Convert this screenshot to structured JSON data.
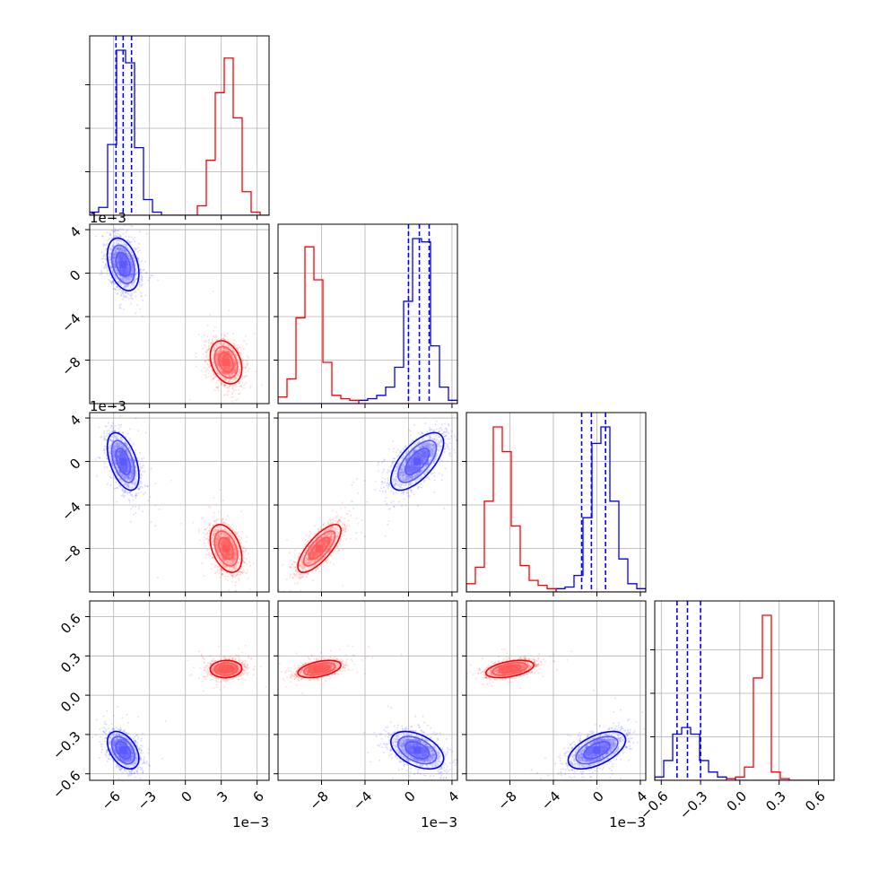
{
  "chart_data": {
    "type": "corner",
    "colors": {
      "blue": "#0000ff",
      "red": "#ff0000",
      "grid": "#b0b0b0"
    },
    "params": [
      {
        "range": [
          -8,
          7
        ],
        "ticks": [
          -6,
          -3,
          0,
          3,
          6
        ],
        "tick_labels": [
          "−6",
          "−3",
          "0",
          "3",
          "6"
        ],
        "scale_label": "1e−3"
      },
      {
        "range": [
          -12,
          4.5
        ],
        "ticks": [
          -8,
          -4,
          0,
          4
        ],
        "tick_labels": [
          "−8",
          "−4",
          "0",
          "4"
        ],
        "scale_label": "1e−3"
      },
      {
        "range": [
          -12,
          4.5
        ],
        "ticks": [
          -8,
          -4,
          0,
          4
        ],
        "tick_labels": [
          "−8",
          "−4",
          "0",
          "4"
        ],
        "scale_label": "1e−3"
      },
      {
        "range": [
          -0.65,
          0.72
        ],
        "ticks": [
          -0.6,
          -0.3,
          0.0,
          0.3,
          0.6
        ],
        "tick_labels": [
          "−0.6",
          "−0.3",
          "0.0",
          "0.3",
          "0.6"
        ],
        "scale_label": ""
      }
    ],
    "populations": [
      {
        "color": "blue",
        "means": [
          -5.2,
          0.8,
          0.0,
          -0.42
        ],
        "sds": [
          0.6,
          1.1,
          1.2,
          0.065
        ],
        "quantiles": [
          [
            -5.8,
            -5.2,
            -4.5
          ],
          [
            0.0,
            1.0,
            1.9
          ],
          [
            -1.4,
            -0.5,
            0.8
          ],
          [
            -0.48,
            -0.4,
            -0.3
          ]
        ],
        "pairs": [
          {
            "i": 1,
            "j": 0,
            "rho": -0.35
          },
          {
            "i": 2,
            "j": 0,
            "rho": -0.5
          },
          {
            "i": 3,
            "j": 0,
            "rho": -0.45
          },
          {
            "i": 2,
            "j": 1,
            "rho": 0.65
          },
          {
            "i": 3,
            "j": 1,
            "rho": -0.45
          },
          {
            "i": 3,
            "j": 2,
            "rho": 0.55
          }
        ]
      },
      {
        "color": "red",
        "means": [
          3.4,
          -8.2,
          -8.0,
          0.2
        ],
        "sds": [
          0.6,
          0.9,
          1.0,
          0.03
        ],
        "quantiles": [],
        "pairs": [
          {
            "i": 1,
            "j": 0,
            "rho": -0.3
          },
          {
            "i": 2,
            "j": 0,
            "rho": -0.4
          },
          {
            "i": 3,
            "j": 0,
            "rho": 0.05
          },
          {
            "i": 2,
            "j": 1,
            "rho": 0.75
          },
          {
            "i": 3,
            "j": 1,
            "rho": 0.45
          },
          {
            "i": 3,
            "j": 2,
            "rho": 0.45
          }
        ]
      }
    ],
    "histograms": [
      {
        "param": 0,
        "edges": [
          -8,
          -7.25,
          -6.5,
          -5.75,
          -5.0,
          -4.25,
          -3.5,
          -2.75,
          -2.0,
          -1.25,
          -0.5,
          0.25,
          1.0,
          1.75,
          2.5,
          3.25,
          4.0,
          4.75,
          5.5,
          6.25,
          7.0
        ],
        "series": [
          {
            "color": "blue",
            "counts": [
              0.02,
              0.05,
              0.45,
              1.05,
              0.97,
              0.43,
              0.1,
              0.02,
              0.0,
              0.0,
              0.0,
              0.0,
              0.0,
              0.0,
              0.0,
              0.0,
              0.0,
              0.0,
              0.0,
              0.0
            ]
          },
          {
            "color": "red",
            "counts": [
              0.0,
              0.0,
              0.0,
              0.0,
              0.0,
              0.0,
              0.0,
              0.0,
              0.0,
              0.0,
              0.0,
              0.0,
              0.06,
              0.35,
              0.78,
              1.0,
              0.62,
              0.15,
              0.02,
              0.0
            ]
          }
        ]
      },
      {
        "param": 1,
        "edges": [
          -12,
          -11.175,
          -10.35,
          -9.525,
          -8.7,
          -7.875,
          -7.05,
          -6.225,
          -5.4,
          -4.575,
          -3.75,
          -2.925,
          -2.1,
          -1.275,
          -0.45,
          0.375,
          1.2,
          2.025,
          2.85,
          3.675,
          4.5
        ],
        "series": [
          {
            "color": "blue",
            "counts": [
              0.0,
              0.0,
              0.0,
              0.0,
              0.0,
              0.0,
              0.0,
              0.0,
              0.0,
              0.02,
              0.03,
              0.05,
              0.1,
              0.22,
              0.62,
              1.0,
              0.98,
              0.35,
              0.1,
              0.02
            ]
          },
          {
            "color": "red",
            "counts": [
              0.04,
              0.15,
              0.52,
              0.95,
              0.75,
              0.25,
              0.05,
              0.03,
              0.02,
              0.0,
              0.0,
              0.0,
              0.0,
              0.0,
              0.0,
              0.0,
              0.0,
              0.0,
              0.0,
              0.0
            ]
          }
        ]
      },
      {
        "param": 2,
        "edges": [
          -12,
          -11.175,
          -10.35,
          -9.525,
          -8.7,
          -7.875,
          -7.05,
          -6.225,
          -5.4,
          -4.575,
          -3.75,
          -2.925,
          -2.1,
          -1.275,
          -0.45,
          0.375,
          1.2,
          2.025,
          2.85,
          3.675,
          4.5
        ],
        "series": [
          {
            "color": "blue",
            "counts": [
              0.0,
              0.0,
              0.0,
              0.0,
              0.0,
              0.0,
              0.0,
              0.0,
              0.0,
              0.0,
              0.02,
              0.03,
              0.1,
              0.45,
              0.9,
              1.0,
              0.55,
              0.2,
              0.05,
              0.02
            ]
          },
          {
            "color": "red",
            "counts": [
              0.05,
              0.15,
              0.55,
              1.0,
              0.85,
              0.4,
              0.16,
              0.07,
              0.04,
              0.02,
              0.0,
              0.0,
              0.0,
              0.0,
              0.0,
              0.0,
              0.0,
              0.0,
              0.0,
              0.0
            ]
          }
        ]
      },
      {
        "param": 3,
        "edges": [
          -0.65,
          -0.5815,
          -0.513,
          -0.4445,
          -0.376,
          -0.3075,
          -0.239,
          -0.1705,
          -0.102,
          -0.0335,
          0.035,
          0.1035,
          0.172,
          0.2405,
          0.309,
          0.3775,
          0.446,
          0.5145,
          0.583,
          0.6515,
          0.72
        ],
        "series": [
          {
            "color": "blue",
            "counts": [
              0.02,
              0.12,
              0.28,
              0.32,
              0.28,
              0.12,
              0.05,
              0.02,
              0.01,
              0.0,
              0.0,
              0.0,
              0.0,
              0.0,
              0.0,
              0.0,
              0.0,
              0.0,
              0.0,
              0.0
            ]
          },
          {
            "color": "red",
            "counts": [
              0.0,
              0.0,
              0.0,
              0.0,
              0.0,
              0.0,
              0.0,
              0.0,
              0.01,
              0.02,
              0.08,
              0.62,
              1.0,
              0.05,
              0.01,
              0.0,
              0.0,
              0.0,
              0.0,
              0.0
            ]
          }
        ]
      }
    ]
  }
}
